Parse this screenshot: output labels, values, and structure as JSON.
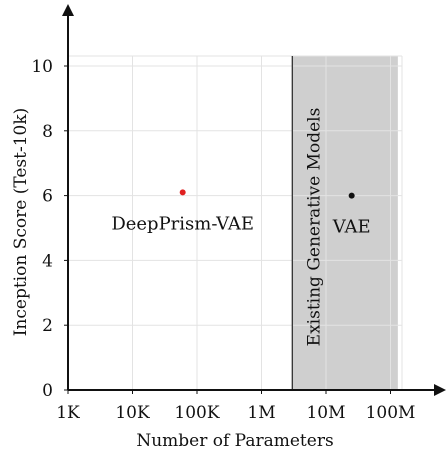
{
  "chart_data": {
    "type": "scatter",
    "title": "",
    "xlabel": "Number of Parameters",
    "ylabel": "Inception Score (Test-10k)",
    "x_scale": "log",
    "x_ticks": [
      {
        "value": 1000,
        "label": "1K"
      },
      {
        "value": 10000,
        "label": "10K"
      },
      {
        "value": 100000,
        "label": "100K"
      },
      {
        "value": 1000000,
        "label": "1M"
      },
      {
        "value": 10000000,
        "label": "10M"
      },
      {
        "value": 100000000,
        "label": "100M"
      }
    ],
    "y_ticks": [
      {
        "value": 0,
        "label": "0"
      },
      {
        "value": 2,
        "label": "2"
      },
      {
        "value": 4,
        "label": "4"
      },
      {
        "value": 6,
        "label": "6"
      },
      {
        "value": 8,
        "label": "8"
      },
      {
        "value": 10,
        "label": "10"
      }
    ],
    "xlim": [
      1000,
      200000000
    ],
    "ylim": [
      0,
      10.4
    ],
    "grid": true,
    "points": [
      {
        "label": "DeepPrism-VAE",
        "x": 60000,
        "y": 6.1,
        "color": "#e02020"
      },
      {
        "label": "VAE",
        "x": 25000000,
        "y": 6.0,
        "color": "#111111"
      }
    ],
    "region": {
      "label": "Existing Generative Models",
      "x_start": 3000000,
      "x_end": 130000000,
      "color": "#cfcfcf"
    }
  }
}
